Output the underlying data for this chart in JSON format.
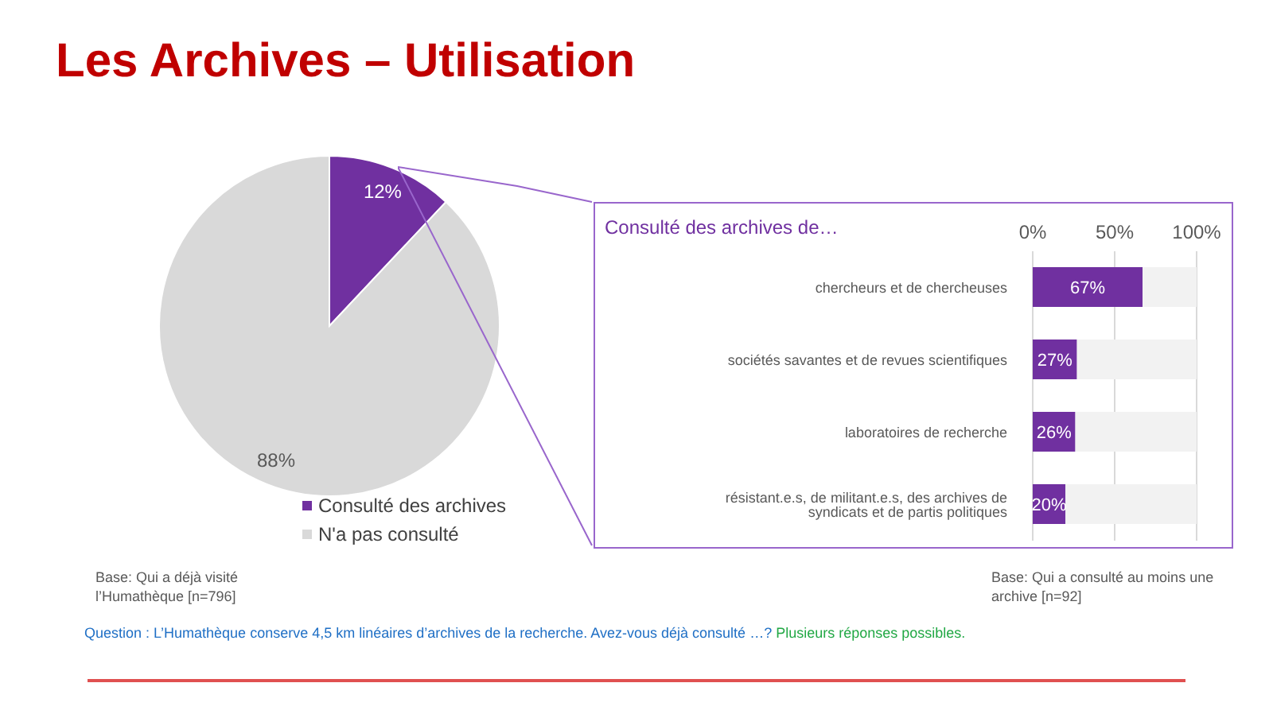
{
  "chart_data": [
    {
      "type": "pie",
      "title": "Les Archives – Utilisation",
      "categories": [
        "Consulté des archives",
        "N'a pas consulté"
      ],
      "values": [
        12,
        88
      ],
      "colors": [
        "#7030a0",
        "#d9d9d9"
      ],
      "value_labels": [
        "12%",
        "88%"
      ],
      "legend": "bottom right",
      "annotations": [
        "Base: Qui a déjà visité l’Humathèque [n=796]",
        "Question : L’Humathèque conserve 4,5 km linéaires d’archives de la recherche. Avez-vous déjà consulté …?",
        "Plusieurs réponses possibles."
      ]
    },
    {
      "type": "bar",
      "orientation": "horizontal",
      "stacked": true,
      "title": "Consulté des archives de…",
      "categories": [
        "chercheurs et de chercheuses",
        "sociétés savantes et de revues scientifiques",
        "laboratoires de recherche",
        "résistant.e.s, de militant.e.s, des archives de syndicats et de partis politiques"
      ],
      "series": [
        {
          "color": "#7030a0",
          "values": [
            67,
            27,
            26,
            20
          ],
          "value_labels": [
            "67%",
            "27%",
            "26%",
            "20%"
          ]
        },
        {
          "color": "#f2f2f2",
          "values": [
            33,
            73,
            74,
            80
          ]
        }
      ],
      "xlim": [
        0,
        100
      ],
      "xticks": [
        {
          "value": 0,
          "label": "0%"
        },
        {
          "value": 50,
          "label": "50%"
        },
        {
          "value": 100,
          "label": "100%"
        }
      ],
      "grid": "x",
      "annotations": [
        "Base: Qui a consulté au moins une archive [n=92]"
      ]
    }
  ]
}
